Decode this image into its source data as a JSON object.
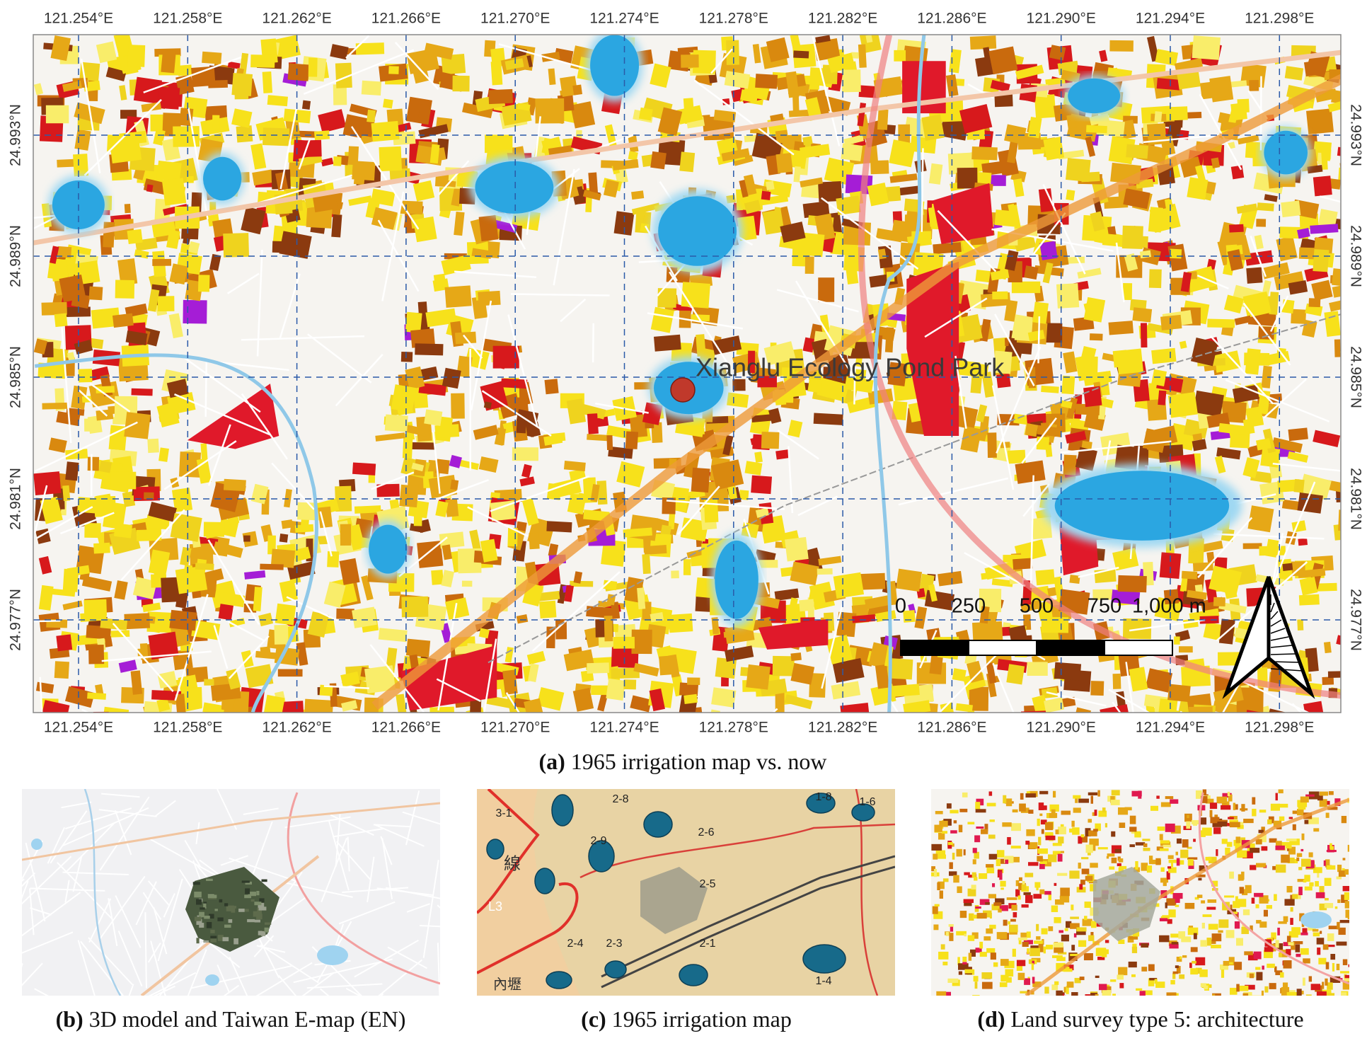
{
  "panel_a": {
    "top_longitude_labels": [
      "121.254°E",
      "121.258°E",
      "121.262°E",
      "121.266°E",
      "121.270°E",
      "121.274°E",
      "121.278°E",
      "121.282°E",
      "121.286°E",
      "121.290°E",
      "121.294°E",
      "121.298°E"
    ],
    "bottom_longitude_labels": [
      "121.254°E",
      "121.258°E",
      "121.262°E",
      "121.266°E",
      "121.270°E",
      "121.274°E",
      "121.278°E",
      "121.282°E",
      "121.286°E",
      "121.290°E",
      "121.294°E",
      "121.298°E"
    ],
    "left_latitude_labels": [
      "24.993°N",
      "24.989°N",
      "24.985°N",
      "24.981°N",
      "24.977°N"
    ],
    "right_latitude_labels": [
      "24.993°N",
      "24.989°N",
      "24.985°N",
      "24.981°N",
      "24.977°N"
    ],
    "site_label": "Xianglu Ecology Pond Park",
    "scale_bar_labels": [
      "0",
      "250",
      "500",
      "750",
      "1,000 m"
    ],
    "caption": {
      "label": "(a)",
      "text": "1965 irrigation map vs. now"
    }
  },
  "panel_b": {
    "caption": {
      "label": "(b)",
      "text": "3D model and Taiwan E-map (EN)"
    }
  },
  "panel_c": {
    "pond_labels": [
      "3-1",
      "2-8",
      "2-9",
      "2-6",
      "2-5",
      "2-4",
      "2-3",
      "2-1",
      "1-8",
      "1-6",
      "1-4"
    ],
    "map_labels": [
      "L3",
      "線",
      "內壢"
    ],
    "caption": {
      "label": "(c)",
      "text": "1965 irrigation map"
    }
  },
  "panel_d": {
    "caption": {
      "label": "(d)",
      "text": "Land survey type 5: architecture"
    }
  }
}
